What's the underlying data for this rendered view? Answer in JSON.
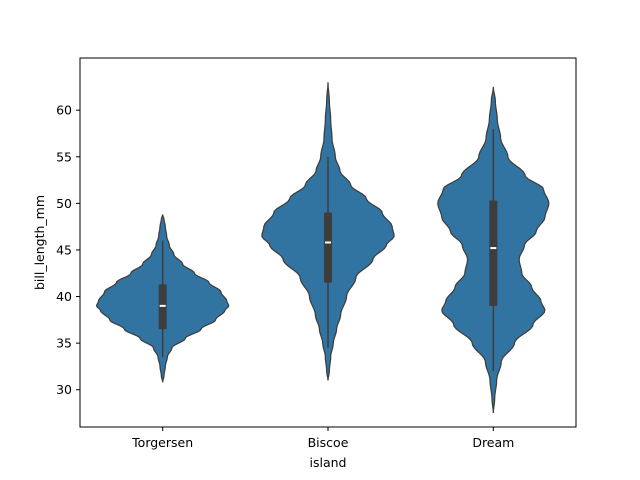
{
  "chart_data": {
    "type": "violin",
    "title": "",
    "xlabel": "island",
    "ylabel": "bill_length_mm",
    "categories": [
      "Torgersen",
      "Biscoe",
      "Dream"
    ],
    "ylim": [
      26,
      65.6
    ],
    "yticks": [
      30,
      35,
      40,
      45,
      50,
      55,
      60
    ],
    "grid": false,
    "legend": "none",
    "colors": {
      "fill": "#3274a1",
      "edge": "#3d3d3d",
      "box": "#3d3d3d",
      "median": "#ffffff"
    },
    "violins": [
      {
        "category": "Torgersen",
        "whisker_low": 33.5,
        "q1": 36.5,
        "median": 39.0,
        "q3": 41.3,
        "whisker_high": 46.0,
        "profile": [
          [
            30.8,
            0.0
          ],
          [
            31.5,
            0.02
          ],
          [
            32.5,
            0.04
          ],
          [
            33.5,
            0.07
          ],
          [
            34.5,
            0.14
          ],
          [
            35.5,
            0.34
          ],
          [
            36.5,
            0.58
          ],
          [
            37.5,
            0.8
          ],
          [
            38.5,
            0.94
          ],
          [
            39.0,
            1.0
          ],
          [
            39.5,
            0.97
          ],
          [
            40.5,
            0.88
          ],
          [
            41.5,
            0.7
          ],
          [
            42.5,
            0.48
          ],
          [
            43.5,
            0.3
          ],
          [
            44.5,
            0.17
          ],
          [
            45.5,
            0.1
          ],
          [
            46.5,
            0.06
          ],
          [
            47.5,
            0.04
          ],
          [
            48.3,
            0.02
          ],
          [
            48.8,
            0.0
          ]
        ]
      },
      {
        "category": "Biscoe",
        "whisker_low": 34.5,
        "q1": 41.5,
        "median": 45.8,
        "q3": 49.0,
        "whisker_high": 55.0,
        "profile": [
          [
            31.0,
            0.0
          ],
          [
            32.0,
            0.02
          ],
          [
            33.5,
            0.04
          ],
          [
            35.0,
            0.08
          ],
          [
            36.5,
            0.13
          ],
          [
            38.0,
            0.19
          ],
          [
            40.0,
            0.28
          ],
          [
            42.0,
            0.42
          ],
          [
            44.0,
            0.68
          ],
          [
            45.5,
            0.88
          ],
          [
            46.5,
            1.0
          ],
          [
            47.5,
            0.97
          ],
          [
            49.0,
            0.82
          ],
          [
            50.5,
            0.58
          ],
          [
            52.0,
            0.34
          ],
          [
            53.5,
            0.18
          ],
          [
            55.0,
            0.11
          ],
          [
            57.0,
            0.06
          ],
          [
            59.0,
            0.04
          ],
          [
            61.0,
            0.02
          ],
          [
            63.0,
            0.0
          ]
        ]
      },
      {
        "category": "Dream",
        "whisker_low": 32.0,
        "q1": 39.0,
        "median": 45.2,
        "q3": 50.3,
        "whisker_high": 58.0,
        "profile": [
          [
            27.5,
            0.0
          ],
          [
            29.0,
            0.02
          ],
          [
            31.0,
            0.05
          ],
          [
            33.0,
            0.12
          ],
          [
            35.0,
            0.32
          ],
          [
            37.0,
            0.6
          ],
          [
            38.5,
            0.78
          ],
          [
            39.5,
            0.72
          ],
          [
            41.0,
            0.58
          ],
          [
            42.5,
            0.43
          ],
          [
            44.0,
            0.39
          ],
          [
            45.5,
            0.47
          ],
          [
            47.0,
            0.65
          ],
          [
            48.5,
            0.78
          ],
          [
            50.0,
            0.84
          ],
          [
            51.5,
            0.76
          ],
          [
            53.0,
            0.48
          ],
          [
            55.0,
            0.22
          ],
          [
            57.0,
            0.11
          ],
          [
            59.0,
            0.06
          ],
          [
            61.0,
            0.03
          ],
          [
            62.5,
            0.0
          ]
        ]
      }
    ]
  }
}
